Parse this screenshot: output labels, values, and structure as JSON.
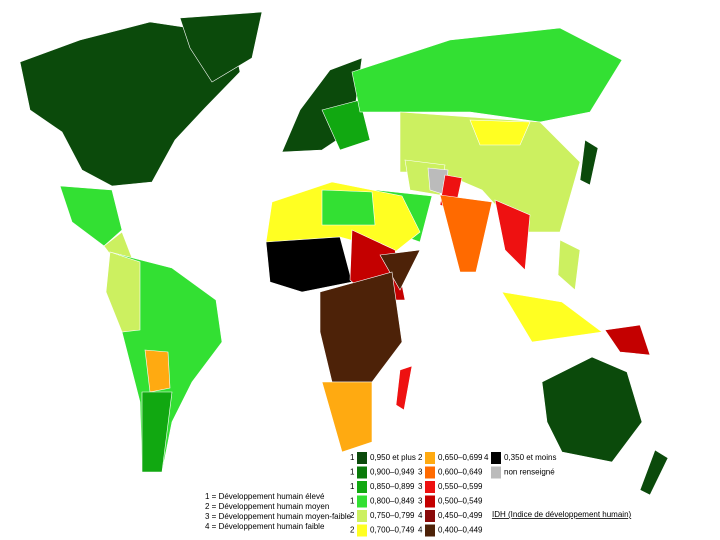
{
  "legend": {
    "items": [
      {
        "group": "1",
        "label": "0,950 et plus",
        "color": "#0b4a0b"
      },
      {
        "group": "1",
        "label": "0,900–0,949",
        "color": "#0a7a0a"
      },
      {
        "group": "1",
        "label": "0,850–0,899",
        "color": "#11a811"
      },
      {
        "group": "1",
        "label": "0,800–0,849",
        "color": "#33e033"
      },
      {
        "group": "2",
        "label": "0,750–0,799",
        "color": "#ccf060"
      },
      {
        "group": "2",
        "label": "0,700–0,749",
        "color": "#ffff22"
      },
      {
        "group": "2",
        "label": "0,650–0,699",
        "color": "#ffaa11"
      },
      {
        "group": "3",
        "label": "0,600–0,649",
        "color": "#ff6a00"
      },
      {
        "group": "3",
        "label": "0,550–0,599",
        "color": "#ee1111"
      },
      {
        "group": "3",
        "label": "0,500–0,549",
        "color": "#c40000"
      },
      {
        "group": "4",
        "label": "0,450–0,499",
        "color": "#8a0a0a"
      },
      {
        "group": "4",
        "label": "0,400–0,449",
        "color": "#4d2208"
      },
      {
        "group": "4",
        "label": "0,350 et moins",
        "color": "#000000"
      },
      {
        "group": "",
        "label": "non renseigné",
        "color": "#bbbbbb"
      }
    ],
    "title": "IDH (Indice de développement humain)"
  },
  "key": [
    "1 = Développement humain élevé",
    "2 = Développement humain moyen",
    "3 = Développement humain moyen-faible",
    "4 = Développement humain faible"
  ]
}
